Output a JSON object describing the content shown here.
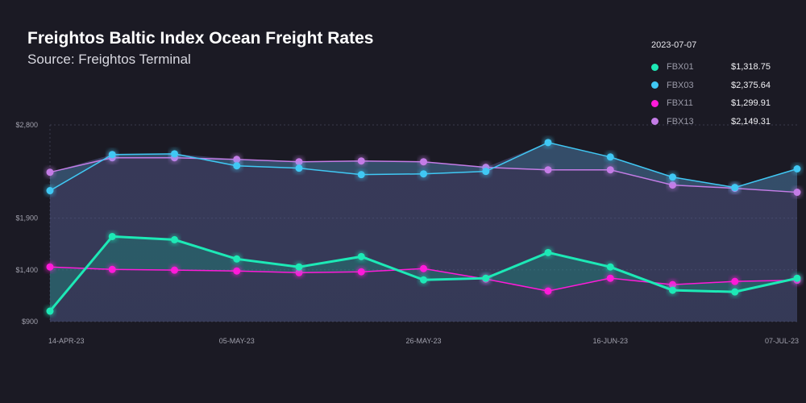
{
  "chart_data": {
    "type": "line",
    "title": "Freightos Baltic Index Ocean Freight Rates",
    "subtitle": "Source: Freightos Terminal",
    "x": [
      "14-APR-23",
      "21-APR-23",
      "28-APR-23",
      "05-MAY-23",
      "12-MAY-23",
      "19-MAY-23",
      "26-MAY-23",
      "02-JUN-23",
      "09-JUN-23",
      "16-JUN-23",
      "23-JUN-23",
      "30-JUN-23",
      "07-JUL-23"
    ],
    "x_tick_labels": [
      "14-APR-23",
      "05-MAY-23",
      "26-MAY-23",
      "16-JUN-23",
      "07-JUL-23"
    ],
    "y_tick_labels": [
      "$900",
      "$1,400",
      "$1,900",
      "$2,800"
    ],
    "y_ticks": [
      900,
      1400,
      1900,
      2800
    ],
    "ylim": [
      900,
      2800
    ],
    "grid": true,
    "legend_placement": "top-right",
    "series": [
      {
        "name": "FBX01",
        "color": "#1de9b6",
        "values": [
          1001,
          1722,
          1691,
          1505,
          1428,
          1528,
          1303,
          1319,
          1567,
          1428,
          1203,
          1187,
          1318.75
        ]
      },
      {
        "name": "FBX03",
        "color": "#40c8f4",
        "values": [
          2165,
          2514,
          2521,
          2405,
          2382,
          2320,
          2327,
          2351,
          2630,
          2490,
          2296,
          2196,
          2375.64
        ]
      },
      {
        "name": "FBX11",
        "color": "#ff1ad9",
        "values": [
          1428,
          1404,
          1397,
          1389,
          1373,
          1381,
          1412,
          1311,
          1195,
          1319,
          1257,
          1288,
          1299.91
        ]
      },
      {
        "name": "FBX13",
        "color": "#c47ce6",
        "values": [
          2343,
          2483,
          2483,
          2467,
          2444,
          2452,
          2444,
          2390,
          2366,
          2366,
          2219,
          2188,
          2149.31
        ]
      }
    ]
  },
  "legend": {
    "date": "2023-07-07",
    "items": [
      {
        "name": "FBX01",
        "value": "$1,318.75",
        "color": "#1de9b6"
      },
      {
        "name": "FBX03",
        "value": "$2,375.64",
        "color": "#40c8f4"
      },
      {
        "name": "FBX11",
        "value": "$1,299.91",
        "color": "#ff1ad9"
      },
      {
        "name": "FBX13",
        "value": "$2,149.31",
        "color": "#c47ce6"
      }
    ]
  }
}
